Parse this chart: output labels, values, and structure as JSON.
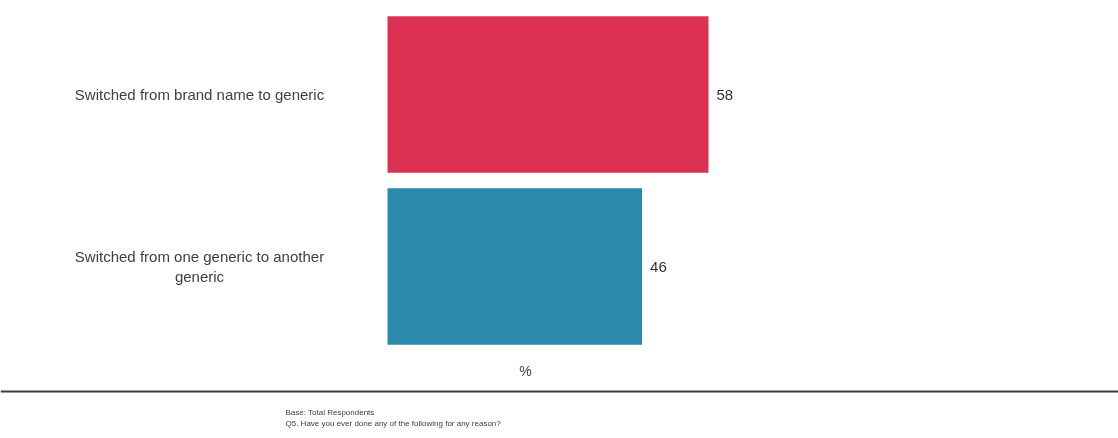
{
  "chart_data": {
    "type": "bar",
    "orientation": "horizontal",
    "categories": [
      "Switched from brand name to generic",
      "Switched from one generic to another generic"
    ],
    "values": [
      58,
      46
    ],
    "colors": [
      "#dc3152",
      "#2a8aab"
    ],
    "data_labels": true,
    "xlabel": "%",
    "grid": false,
    "annotations": [
      "Base: Total Respondents",
      "Q5. Have you ever done any of the following for any reason?"
    ]
  }
}
